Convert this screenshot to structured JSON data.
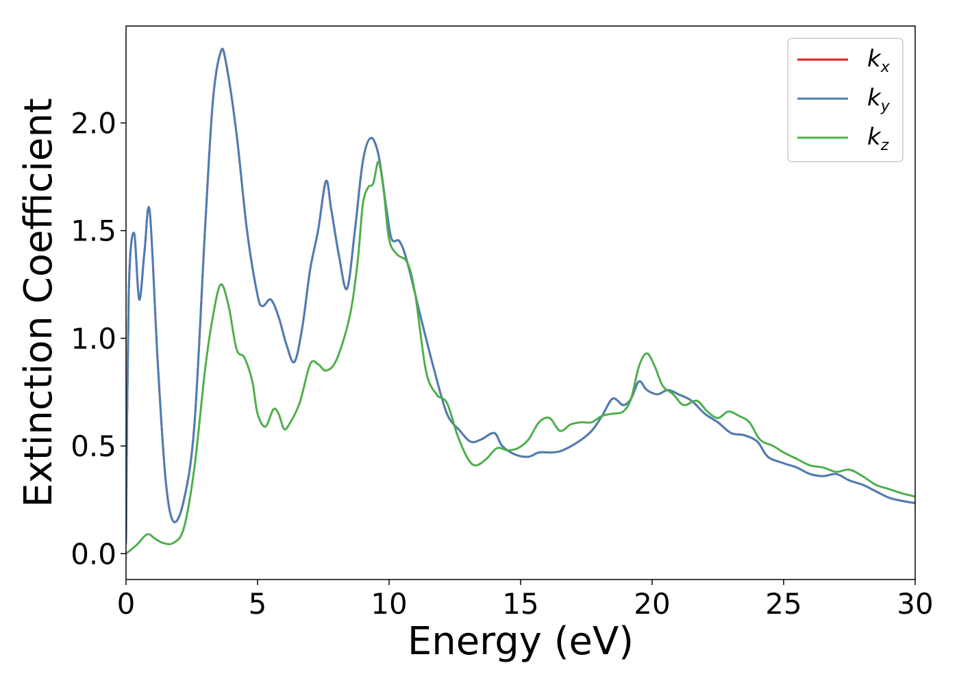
{
  "chart_data": {
    "type": "line",
    "title": "",
    "xlabel": "Energy (eV)",
    "ylabel": "Extinction Coefficient",
    "xlim": [
      0,
      30
    ],
    "ylim": [
      -0.12,
      2.45
    ],
    "xticks": [
      0,
      5,
      10,
      15,
      20,
      25,
      30
    ],
    "xtick_labels": [
      "0",
      "5",
      "10",
      "15",
      "20",
      "25",
      "30"
    ],
    "yticks": [
      0.0,
      0.5,
      1.0,
      1.5,
      2.0
    ],
    "ytick_labels": [
      "0.0",
      "0.5",
      "1.0",
      "1.5",
      "2.0"
    ],
    "grid": false,
    "legend_position": "top-right",
    "series": [
      {
        "name": "k_x",
        "label_main": "k",
        "label_sub": "x",
        "color": "#e41a1c",
        "points": [
          [
            0,
            0.05
          ],
          [
            0.1,
            1.2
          ],
          [
            0.3,
            1.49
          ],
          [
            0.5,
            1.18
          ],
          [
            0.7,
            1.4
          ],
          [
            0.9,
            1.59
          ],
          [
            1.2,
            0.9
          ],
          [
            1.5,
            0.35
          ],
          [
            1.8,
            0.15
          ],
          [
            2.2,
            0.25
          ],
          [
            2.6,
            0.6
          ],
          [
            3.0,
            1.5
          ],
          [
            3.3,
            2.1
          ],
          [
            3.6,
            2.33
          ],
          [
            3.8,
            2.28
          ],
          [
            4.2,
            1.95
          ],
          [
            4.6,
            1.5
          ],
          [
            5.0,
            1.2
          ],
          [
            5.2,
            1.15
          ],
          [
            5.5,
            1.18
          ],
          [
            5.8,
            1.1
          ],
          [
            6.1,
            0.97
          ],
          [
            6.4,
            0.89
          ],
          [
            6.7,
            1.05
          ],
          [
            7.0,
            1.32
          ],
          [
            7.3,
            1.5
          ],
          [
            7.6,
            1.73
          ],
          [
            7.8,
            1.6
          ],
          [
            8.1,
            1.38
          ],
          [
            8.4,
            1.23
          ],
          [
            8.7,
            1.5
          ],
          [
            9.0,
            1.82
          ],
          [
            9.3,
            1.93
          ],
          [
            9.6,
            1.85
          ],
          [
            9.9,
            1.6
          ],
          [
            10.1,
            1.46
          ],
          [
            10.4,
            1.45
          ],
          [
            10.7,
            1.35
          ],
          [
            11.2,
            1.1
          ],
          [
            11.7,
            0.86
          ],
          [
            12.2,
            0.65
          ],
          [
            12.7,
            0.57
          ],
          [
            13.1,
            0.52
          ],
          [
            13.5,
            0.53
          ],
          [
            14.0,
            0.56
          ],
          [
            14.3,
            0.5
          ],
          [
            14.8,
            0.46
          ],
          [
            15.3,
            0.45
          ],
          [
            15.7,
            0.47
          ],
          [
            16.2,
            0.47
          ],
          [
            16.6,
            0.48
          ],
          [
            17.2,
            0.52
          ],
          [
            17.7,
            0.57
          ],
          [
            18.1,
            0.64
          ],
          [
            18.5,
            0.72
          ],
          [
            18.9,
            0.69
          ],
          [
            19.2,
            0.72
          ],
          [
            19.5,
            0.8
          ],
          [
            19.8,
            0.76
          ],
          [
            20.2,
            0.74
          ],
          [
            20.6,
            0.76
          ],
          [
            21.0,
            0.74
          ],
          [
            21.5,
            0.71
          ],
          [
            22.0,
            0.65
          ],
          [
            22.5,
            0.61
          ],
          [
            23.0,
            0.56
          ],
          [
            23.5,
            0.55
          ],
          [
            24.0,
            0.52
          ],
          [
            24.4,
            0.45
          ],
          [
            25.0,
            0.42
          ],
          [
            25.5,
            0.4
          ],
          [
            26.0,
            0.37
          ],
          [
            26.5,
            0.36
          ],
          [
            27.0,
            0.37
          ],
          [
            27.5,
            0.34
          ],
          [
            28.0,
            0.32
          ],
          [
            28.5,
            0.29
          ],
          [
            29.0,
            0.26
          ],
          [
            29.5,
            0.245
          ],
          [
            30.0,
            0.235
          ]
        ]
      },
      {
        "name": "k_y",
        "label_main": "k",
        "label_sub": "y",
        "color": "#4a7fb5",
        "points": [
          [
            0,
            0.05
          ],
          [
            0.1,
            1.2
          ],
          [
            0.3,
            1.49
          ],
          [
            0.5,
            1.18
          ],
          [
            0.7,
            1.4
          ],
          [
            0.9,
            1.59
          ],
          [
            1.2,
            0.9
          ],
          [
            1.5,
            0.35
          ],
          [
            1.8,
            0.15
          ],
          [
            2.2,
            0.25
          ],
          [
            2.6,
            0.6
          ],
          [
            3.0,
            1.5
          ],
          [
            3.3,
            2.1
          ],
          [
            3.6,
            2.33
          ],
          [
            3.8,
            2.28
          ],
          [
            4.2,
            1.95
          ],
          [
            4.6,
            1.5
          ],
          [
            5.0,
            1.2
          ],
          [
            5.2,
            1.15
          ],
          [
            5.5,
            1.18
          ],
          [
            5.8,
            1.1
          ],
          [
            6.1,
            0.97
          ],
          [
            6.4,
            0.89
          ],
          [
            6.7,
            1.05
          ],
          [
            7.0,
            1.32
          ],
          [
            7.3,
            1.5
          ],
          [
            7.6,
            1.73
          ],
          [
            7.8,
            1.6
          ],
          [
            8.1,
            1.38
          ],
          [
            8.4,
            1.23
          ],
          [
            8.7,
            1.5
          ],
          [
            9.0,
            1.82
          ],
          [
            9.3,
            1.93
          ],
          [
            9.6,
            1.85
          ],
          [
            9.9,
            1.6
          ],
          [
            10.1,
            1.46
          ],
          [
            10.4,
            1.45
          ],
          [
            10.7,
            1.35
          ],
          [
            11.2,
            1.1
          ],
          [
            11.7,
            0.86
          ],
          [
            12.2,
            0.65
          ],
          [
            12.7,
            0.57
          ],
          [
            13.1,
            0.52
          ],
          [
            13.5,
            0.53
          ],
          [
            14.0,
            0.56
          ],
          [
            14.3,
            0.5
          ],
          [
            14.8,
            0.46
          ],
          [
            15.3,
            0.45
          ],
          [
            15.7,
            0.47
          ],
          [
            16.2,
            0.47
          ],
          [
            16.6,
            0.48
          ],
          [
            17.2,
            0.52
          ],
          [
            17.7,
            0.57
          ],
          [
            18.1,
            0.64
          ],
          [
            18.5,
            0.72
          ],
          [
            18.9,
            0.69
          ],
          [
            19.2,
            0.72
          ],
          [
            19.5,
            0.8
          ],
          [
            19.8,
            0.76
          ],
          [
            20.2,
            0.74
          ],
          [
            20.6,
            0.76
          ],
          [
            21.0,
            0.74
          ],
          [
            21.5,
            0.71
          ],
          [
            22.0,
            0.65
          ],
          [
            22.5,
            0.61
          ],
          [
            23.0,
            0.56
          ],
          [
            23.5,
            0.55
          ],
          [
            24.0,
            0.52
          ],
          [
            24.4,
            0.45
          ],
          [
            25.0,
            0.42
          ],
          [
            25.5,
            0.4
          ],
          [
            26.0,
            0.37
          ],
          [
            26.5,
            0.36
          ],
          [
            27.0,
            0.37
          ],
          [
            27.5,
            0.34
          ],
          [
            28.0,
            0.32
          ],
          [
            28.5,
            0.29
          ],
          [
            29.0,
            0.26
          ],
          [
            29.5,
            0.245
          ],
          [
            30.0,
            0.235
          ]
        ]
      },
      {
        "name": "k_z",
        "label_main": "k",
        "label_sub": "z",
        "color": "#4daf4a",
        "points": [
          [
            0,
            0.0
          ],
          [
            0.4,
            0.04
          ],
          [
            0.8,
            0.09
          ],
          [
            1.1,
            0.07
          ],
          [
            1.4,
            0.05
          ],
          [
            1.8,
            0.05
          ],
          [
            2.2,
            0.12
          ],
          [
            2.6,
            0.4
          ],
          [
            3.0,
            0.85
          ],
          [
            3.3,
            1.1
          ],
          [
            3.6,
            1.25
          ],
          [
            3.9,
            1.15
          ],
          [
            4.2,
            0.95
          ],
          [
            4.5,
            0.91
          ],
          [
            4.8,
            0.8
          ],
          [
            5.0,
            0.65
          ],
          [
            5.3,
            0.59
          ],
          [
            5.6,
            0.67
          ],
          [
            5.8,
            0.65
          ],
          [
            6.0,
            0.58
          ],
          [
            6.2,
            0.6
          ],
          [
            6.6,
            0.7
          ],
          [
            7.0,
            0.88
          ],
          [
            7.3,
            0.88
          ],
          [
            7.6,
            0.85
          ],
          [
            8.0,
            0.9
          ],
          [
            8.5,
            1.1
          ],
          [
            8.8,
            1.35
          ],
          [
            9.0,
            1.62
          ],
          [
            9.2,
            1.7
          ],
          [
            9.4,
            1.72
          ],
          [
            9.6,
            1.82
          ],
          [
            9.8,
            1.68
          ],
          [
            10.0,
            1.46
          ],
          [
            10.3,
            1.39
          ],
          [
            10.7,
            1.35
          ],
          [
            11.0,
            1.2
          ],
          [
            11.4,
            0.85
          ],
          [
            11.8,
            0.74
          ],
          [
            12.2,
            0.7
          ],
          [
            12.6,
            0.55
          ],
          [
            13.0,
            0.44
          ],
          [
            13.3,
            0.41
          ],
          [
            13.7,
            0.44
          ],
          [
            14.1,
            0.49
          ],
          [
            14.5,
            0.48
          ],
          [
            14.9,
            0.49
          ],
          [
            15.3,
            0.53
          ],
          [
            15.7,
            0.61
          ],
          [
            16.1,
            0.63
          ],
          [
            16.5,
            0.57
          ],
          [
            16.9,
            0.6
          ],
          [
            17.3,
            0.61
          ],
          [
            17.7,
            0.61
          ],
          [
            18.1,
            0.64
          ],
          [
            18.5,
            0.65
          ],
          [
            18.9,
            0.66
          ],
          [
            19.2,
            0.72
          ],
          [
            19.5,
            0.87
          ],
          [
            19.8,
            0.93
          ],
          [
            20.1,
            0.87
          ],
          [
            20.4,
            0.78
          ],
          [
            20.8,
            0.74
          ],
          [
            21.2,
            0.69
          ],
          [
            21.7,
            0.71
          ],
          [
            22.1,
            0.66
          ],
          [
            22.5,
            0.63
          ],
          [
            22.9,
            0.66
          ],
          [
            23.3,
            0.64
          ],
          [
            23.7,
            0.61
          ],
          [
            24.1,
            0.53
          ],
          [
            24.6,
            0.5
          ],
          [
            25.0,
            0.47
          ],
          [
            25.5,
            0.44
          ],
          [
            26.0,
            0.41
          ],
          [
            26.5,
            0.4
          ],
          [
            27.0,
            0.38
          ],
          [
            27.5,
            0.39
          ],
          [
            28.0,
            0.36
          ],
          [
            28.5,
            0.32
          ],
          [
            29.0,
            0.3
          ],
          [
            29.5,
            0.28
          ],
          [
            30.0,
            0.265
          ]
        ]
      }
    ]
  }
}
